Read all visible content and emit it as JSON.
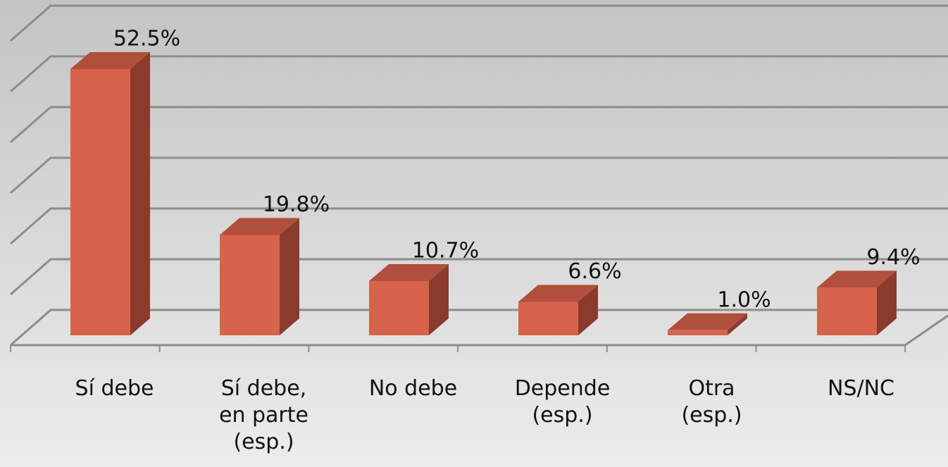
{
  "chart_data": {
    "type": "bar3d",
    "categories": [
      [
        "Sí debe"
      ],
      [
        "Sí debe,",
        "en parte",
        "(esp.)"
      ],
      [
        "No debe"
      ],
      [
        "Depende",
        "(esp.)"
      ],
      [
        "Otra",
        "(esp.)"
      ],
      [
        "NS/NC"
      ]
    ],
    "values": [
      52.5,
      19.8,
      10.7,
      6.6,
      1.0,
      9.4
    ],
    "value_labels": [
      "52.5%",
      "19.8%",
      "10.7%",
      "6.6%",
      "1.0%",
      "9.4%"
    ],
    "color": "#d6634a",
    "side_color": "#8a3c2c",
    "top_color": "#b04f3b",
    "ylim": [
      0,
      60
    ],
    "yticks": [
      0,
      10,
      20,
      30,
      40,
      50,
      60
    ],
    "grid": true
  }
}
